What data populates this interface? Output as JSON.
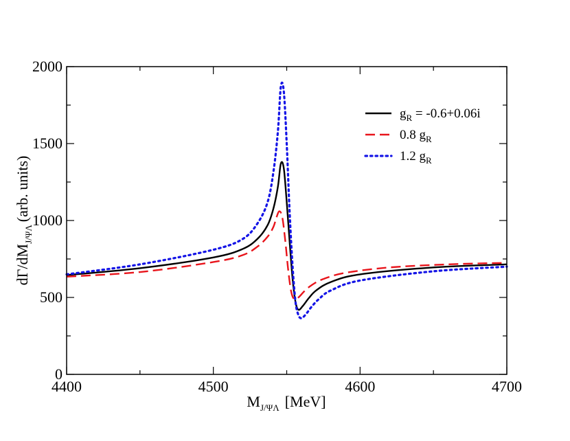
{
  "chart_data": {
    "type": "line",
    "xlabel": "M",
    "xlabel_sub": "J/ΨΛ",
    "xlabel_unit": "[MeV]",
    "ylabel_pre": "dΓ/dM",
    "ylabel_sub": "J/ΨΛ",
    "ylabel_post": "(arb. units)",
    "xlim": [
      4400,
      4700
    ],
    "ylim": [
      0,
      2000
    ],
    "xticks": [
      4400,
      4500,
      4600,
      4700
    ],
    "yticks": [
      0,
      500,
      1000,
      1500,
      2000
    ],
    "xtick_labels": [
      "4400",
      "4500",
      "4600",
      "4700"
    ],
    "ytick_labels": [
      "0",
      "500",
      "1000",
      "1500",
      "2000"
    ],
    "grid": false,
    "legend_position": "top-right",
    "series": [
      {
        "name": "g_R = -0.6+0.06i",
        "legend_main": "g",
        "legend_sub": "R",
        "legend_rest": " = -0.6+0.06i",
        "color": "#000000",
        "dash": "solid",
        "x": [
          4400,
          4450,
          4500,
          4520,
          4530,
          4537,
          4541,
          4544,
          4546,
          4548,
          4550,
          4552,
          4554,
          4556,
          4558,
          4561,
          4565,
          4570,
          4580,
          4600,
          4650,
          4700
        ],
        "y": [
          645,
          690,
          760,
          815,
          880,
          970,
          1080,
          1220,
          1370,
          1340,
          1120,
          860,
          620,
          470,
          420,
          445,
          495,
          545,
          600,
          650,
          695,
          715
        ]
      },
      {
        "name": "0.8 g_R",
        "legend_main": "0.8 g",
        "legend_sub": "R",
        "legend_rest": "",
        "color": "#e8141b",
        "dash": "dashed",
        "x": [
          4400,
          4450,
          4500,
          4520,
          4530,
          4537,
          4541,
          4543,
          4545,
          4547,
          4549,
          4551,
          4553,
          4555,
          4558,
          4562,
          4567,
          4575,
          4590,
          4620,
          4660,
          4700
        ],
        "y": [
          635,
          665,
          730,
          775,
          830,
          895,
          960,
          1020,
          1060,
          1020,
          870,
          680,
          540,
          490,
          500,
          540,
          580,
          620,
          660,
          695,
          715,
          725
        ]
      },
      {
        "name": "1.2 g_R",
        "legend_main": "1.2 g",
        "legend_sub": "R",
        "legend_rest": "",
        "color": "#1414e6",
        "dash": "dotted",
        "x": [
          4400,
          4450,
          4500,
          4520,
          4530,
          4537,
          4541,
          4544,
          4546,
          4548,
          4550,
          4552,
          4554,
          4556,
          4558,
          4560,
          4563,
          4567,
          4572,
          4580,
          4600,
          4650,
          4700
        ],
        "y": [
          650,
          715,
          810,
          880,
          980,
          1120,
          1320,
          1580,
          1870,
          1840,
          1500,
          1050,
          700,
          470,
          385,
          365,
          390,
          440,
          490,
          545,
          610,
          670,
          700
        ]
      }
    ]
  }
}
